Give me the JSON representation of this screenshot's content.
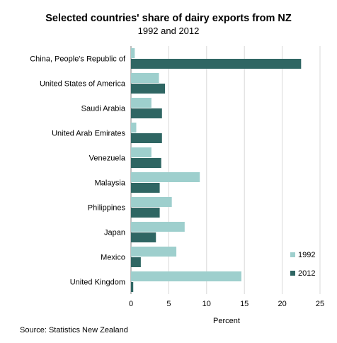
{
  "chart_data": {
    "type": "bar",
    "orientation": "horizontal",
    "title": "Selected countries' share of dairy exports from NZ",
    "subtitle": "1992 and 2012",
    "xlabel": "Percent",
    "ylabel": "",
    "xlim": [
      0,
      25
    ],
    "xticks": [
      0,
      5,
      10,
      15,
      20,
      25
    ],
    "grid": true,
    "legend_position": "right",
    "categories": [
      "China, People's Republic of",
      "United States of America",
      "Saudi Arabia",
      "United Arab Emirates",
      "Venezuela",
      "Malaysia",
      "Philippines",
      "Japan",
      "Mexico",
      "United Kingdom"
    ],
    "series": [
      {
        "name": "1992",
        "color": "#9ecfcd",
        "values": [
          0.5,
          3.7,
          2.7,
          0.7,
          2.7,
          9.1,
          5.4,
          7.1,
          6.0,
          14.6
        ]
      },
      {
        "name": "2012",
        "color": "#2f6663",
        "values": [
          22.5,
          4.5,
          4.1,
          4.1,
          4.0,
          3.8,
          3.8,
          3.3,
          1.3,
          0.3
        ]
      }
    ]
  },
  "source": "Source: Statistics New Zealand"
}
